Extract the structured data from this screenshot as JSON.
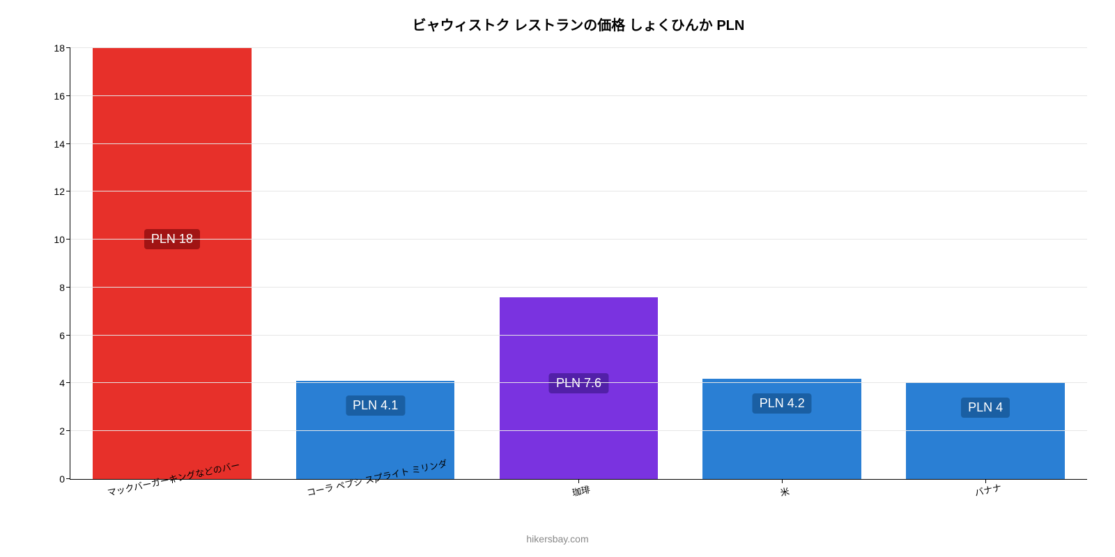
{
  "chart": {
    "type": "bar",
    "title": "ビャウィストク レストランの価格 しょくひんか PLN",
    "title_fontsize": 20,
    "title_color": "#000000",
    "background_color": "#ffffff",
    "grid_color": "#e6e6e6",
    "axis_color": "#000000",
    "ymin": 0,
    "ymax": 18,
    "ytick_step": 2,
    "ytick_fontsize": 14,
    "xtick_fontsize": 13,
    "xtick_rotation_deg": -12,
    "bar_width_ratio": 0.78,
    "value_badge_fontsize": 18,
    "attribution": "hikersbay.com",
    "attribution_color": "#888888",
    "categories": [
      "マックバーガーキングなどのバー",
      "コーラ ペプシ スプライト ミリンダ",
      "珈琲",
      "米",
      "バナナ"
    ],
    "values": [
      18,
      4.1,
      7.6,
      4.2,
      4
    ],
    "value_labels": [
      "PLN 18",
      "PLN 4.1",
      "PLN 7.6",
      "PLN 4.2",
      "PLN 4"
    ],
    "bar_colors": [
      "#e7302a",
      "#2a7fd4",
      "#7a33e0",
      "#2a7fd4",
      "#2a7fd4"
    ],
    "badge_colors": [
      "#a11414",
      "#1a5fa3",
      "#5220a8",
      "#1a5fa3",
      "#1a5fa3"
    ]
  }
}
